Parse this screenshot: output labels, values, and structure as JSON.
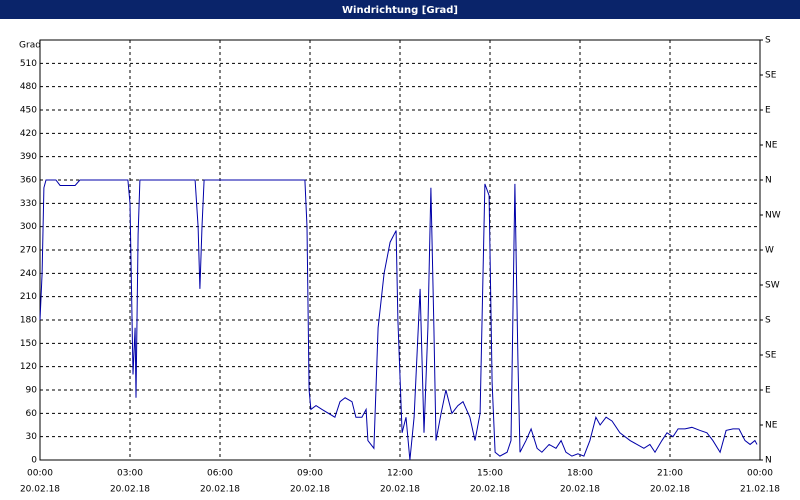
{
  "chart_data": {
    "type": "line",
    "title": "Windrichtung [Grad]",
    "ylabel": "Grad",
    "x": [
      0,
      0.07,
      0.13,
      0.2,
      0.53,
      0.67,
      1.17,
      1.33,
      2.93,
      3,
      3.1,
      3.17,
      3.2,
      3.27,
      3.33,
      5.17,
      5.27,
      5.33,
      5.4,
      5.47,
      8.83,
      8.9,
      8.97,
      9.03,
      9.2,
      9.4,
      9.83,
      10,
      10.17,
      10.4,
      10.53,
      10.73,
      10.87,
      10.93,
      11.13,
      11.27,
      11.47,
      11.67,
      11.87,
      11.93,
      12.07,
      12.2,
      12.33,
      12.47,
      12.67,
      12.8,
      12.93,
      13.03,
      13.13,
      13.2,
      13.37,
      13.53,
      13.73,
      13.93,
      14.1,
      14.33,
      14.5,
      14.67,
      14.83,
      14.97,
      15.07,
      15.17,
      15.33,
      15.57,
      15.7,
      15.83,
      15.93,
      16,
      16.2,
      16.37,
      16.57,
      16.73,
      16.97,
      17.2,
      17.37,
      17.53,
      17.73,
      17.93,
      18.13,
      18.33,
      18.53,
      18.67,
      18.87,
      19.07,
      19.33,
      19.67,
      19.9,
      20.13,
      20.33,
      20.5,
      20.73,
      20.9,
      21.1,
      21.27,
      21.5,
      21.73,
      22,
      22.23,
      22.43,
      22.67,
      22.87,
      23.1,
      23.3,
      23.5,
      23.67,
      23.83,
      23.9
    ],
    "series": [
      {
        "color": "#0000a8",
        "values": [
          180,
          240,
          350,
          360,
          360,
          353,
          353,
          360,
          360,
          330,
          110,
          170,
          80,
          290,
          360,
          360,
          300,
          220,
          300,
          360,
          360,
          300,
          90,
          65,
          70,
          65,
          55,
          75,
          80,
          75,
          55,
          55,
          65,
          25,
          15,
          170,
          240,
          280,
          295,
          180,
          35,
          55,
          0,
          55,
          220,
          35,
          170,
          350,
          170,
          25,
          60,
          90,
          60,
          70,
          75,
          55,
          25,
          60,
          355,
          340,
          100,
          10,
          5,
          10,
          25,
          355,
          130,
          10,
          25,
          40,
          15,
          10,
          20,
          15,
          25,
          10,
          5,
          8,
          5,
          25,
          55,
          45,
          55,
          50,
          35,
          25,
          20,
          15,
          20,
          10,
          25,
          35,
          30,
          40,
          40,
          42,
          38,
          35,
          25,
          10,
          38,
          40,
          40,
          25,
          20,
          25,
          20
        ]
      }
    ],
    "xlim": [
      0,
      24
    ],
    "xticks": [
      {
        "value": 0,
        "label": "00:00"
      },
      {
        "value": 3,
        "label": "03:00"
      },
      {
        "value": 6,
        "label": "06:00"
      },
      {
        "value": 9,
        "label": "09:00"
      },
      {
        "value": 12,
        "label": "12:00"
      },
      {
        "value": 15,
        "label": "15:00"
      },
      {
        "value": 18,
        "label": "18:00"
      },
      {
        "value": 21,
        "label": "21:00"
      },
      {
        "value": 24,
        "label": "00:00"
      }
    ],
    "xtick_dates": [
      "20.02.18",
      "20.02.18",
      "20.02.18",
      "20.02.18",
      "20.02.18",
      "20.02.18",
      "20.02.18",
      "20.02.18",
      "21.02.18"
    ],
    "ylim": [
      0,
      540
    ],
    "yticks": [
      0,
      30,
      60,
      90,
      120,
      150,
      180,
      210,
      240,
      270,
      300,
      330,
      360,
      390,
      420,
      450,
      480,
      510
    ],
    "y2lim": [
      0,
      540
    ],
    "y2ticks": [
      {
        "value": 0,
        "label": "N"
      },
      {
        "value": 45,
        "label": "NE"
      },
      {
        "value": 90,
        "label": "E"
      },
      {
        "value": 135,
        "label": "SE"
      },
      {
        "value": 180,
        "label": "S"
      },
      {
        "value": 225,
        "label": "SW"
      },
      {
        "value": 270,
        "label": "W"
      },
      {
        "value": 315,
        "label": "NW"
      },
      {
        "value": 360,
        "label": "N"
      },
      {
        "value": 405,
        "label": "NE"
      },
      {
        "value": 450,
        "label": "E"
      },
      {
        "value": 495,
        "label": "SE"
      },
      {
        "value": 540,
        "label": "S"
      }
    ],
    "grid": true
  }
}
